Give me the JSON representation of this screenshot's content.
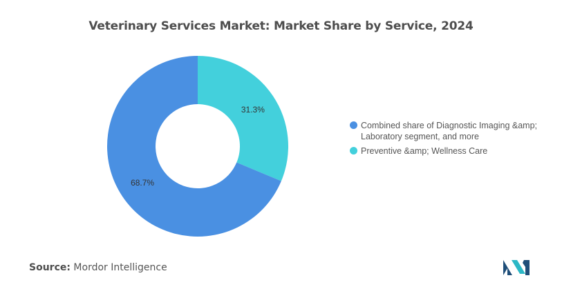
{
  "chart_data": {
    "type": "pie",
    "title": "Veterinary Services Market: Market Share by Service, 2024",
    "donut": true,
    "series": [
      {
        "name": "Combined share of Diagnostic Imaging &amp; Laboratory segment, and more",
        "value": 68.7,
        "label": "68.7%",
        "color": "#4a90e2"
      },
      {
        "name": "Preventive &amp; Wellness Care",
        "value": 31.3,
        "label": "31.3%",
        "color": "#43d0dc"
      }
    ],
    "legend_position": "right"
  },
  "source": {
    "label": "Source:",
    "text": "Mordor Intelligence"
  },
  "colors": {
    "logo_dark": "#1f4e79",
    "logo_teal": "#2cb8c6"
  }
}
